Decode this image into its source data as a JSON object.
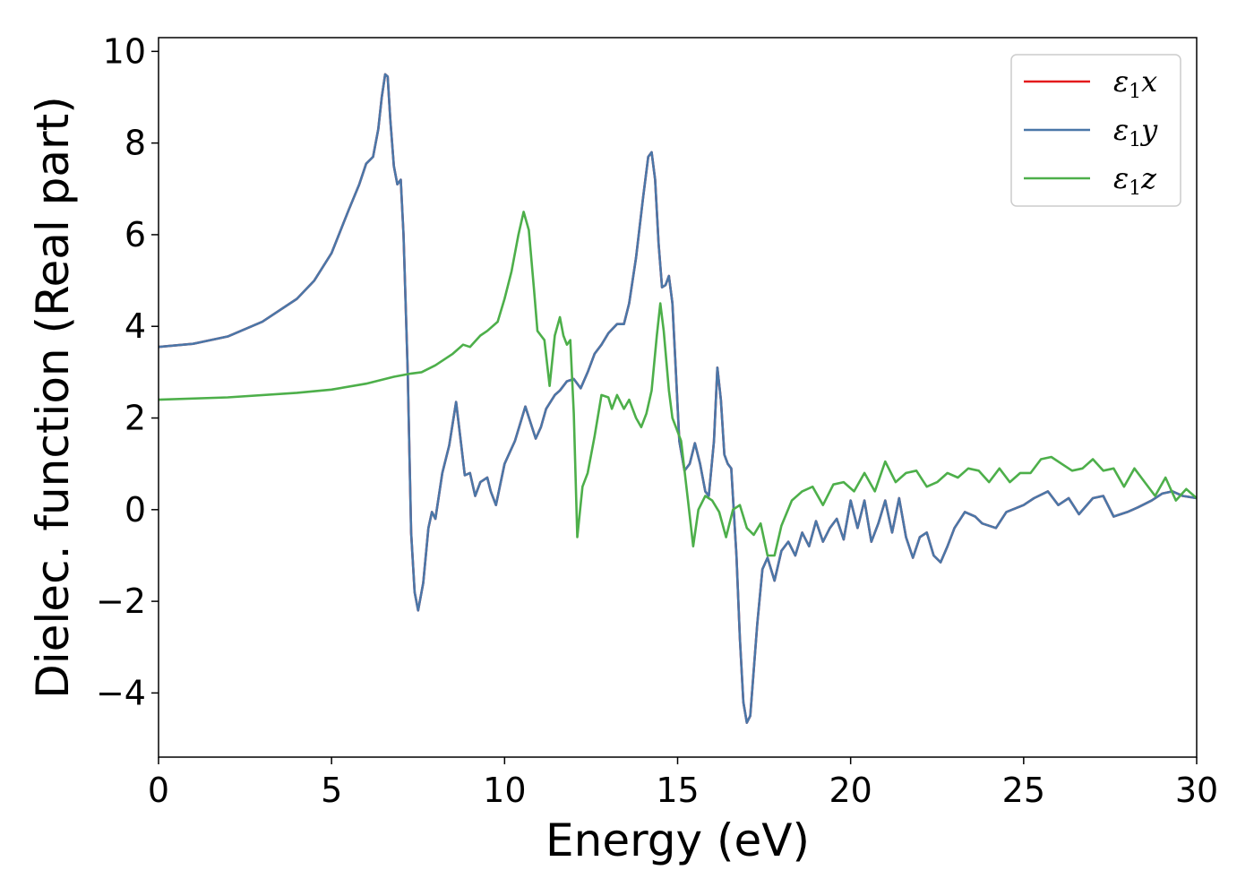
{
  "chart_data": {
    "type": "line",
    "title": "",
    "xlabel": "Energy (eV)",
    "ylabel": "Dielec. function (Real part)",
    "xlim": [
      0,
      30
    ],
    "ylim": [
      -5.4,
      10.3
    ],
    "xticks": [
      0,
      5,
      10,
      15,
      20,
      25,
      30
    ],
    "yticks": [
      -4,
      -2,
      0,
      2,
      4,
      6,
      8,
      10
    ],
    "xtick_labels": [
      "0",
      "5",
      "10",
      "15",
      "20",
      "25",
      "30"
    ],
    "ytick_labels": [
      "−4",
      "−2",
      "0",
      "2",
      "4",
      "6",
      "8",
      "10"
    ],
    "grid": false,
    "legend_position": "top-right",
    "series": [
      {
        "name": "ε₁x",
        "legend_symbol": "ε",
        "legend_sub": "1",
        "legend_axis": "x",
        "color": "#e41a1c",
        "x": [
          0,
          1,
          2,
          3,
          4,
          4.5,
          5,
          5.5,
          5.8,
          6.0,
          6.2,
          6.35,
          6.45,
          6.55,
          6.62,
          6.7,
          6.8,
          6.9,
          7.0,
          7.08,
          7.2,
          7.3,
          7.4,
          7.5,
          7.65,
          7.8,
          7.9,
          8.0,
          8.2,
          8.4,
          8.6,
          8.75,
          8.85,
          9.0,
          9.15,
          9.3,
          9.5,
          9.6,
          9.75,
          10.0,
          10.3,
          10.6,
          10.75,
          10.9,
          11.05,
          11.2,
          11.45,
          11.6,
          11.8,
          12.0,
          12.2,
          12.4,
          12.6,
          12.8,
          13.0,
          13.25,
          13.45,
          13.6,
          13.8,
          14.0,
          14.15,
          14.25,
          14.35,
          14.45,
          14.55,
          14.65,
          14.75,
          14.85,
          14.95,
          15.05,
          15.2,
          15.35,
          15.5,
          15.65,
          15.8,
          15.9,
          16.05,
          16.15,
          16.25,
          16.35,
          16.45,
          16.55,
          16.7,
          16.8,
          16.9,
          17.0,
          17.1,
          17.3,
          17.45,
          17.6,
          17.8,
          18.0,
          18.2,
          18.4,
          18.6,
          18.8,
          19.0,
          19.2,
          19.4,
          19.6,
          19.8,
          20.0,
          20.2,
          20.4,
          20.6,
          20.8,
          21.0,
          21.2,
          21.4,
          21.6,
          21.8,
          22.0,
          22.2,
          22.4,
          22.6,
          22.8,
          23.0,
          23.3,
          23.6,
          23.8,
          24.2,
          24.5,
          25.0,
          25.3,
          25.7,
          26.0,
          26.3,
          26.6,
          27.0,
          27.3,
          27.6,
          28.0,
          28.3,
          28.7,
          29.0,
          29.3,
          29.6,
          30.0
        ],
        "y": [
          3.55,
          3.62,
          3.78,
          4.1,
          4.6,
          5.0,
          5.6,
          6.55,
          7.1,
          7.55,
          7.7,
          8.3,
          9.0,
          9.5,
          9.45,
          8.5,
          7.5,
          7.1,
          7.2,
          6.0,
          3.0,
          -0.5,
          -1.8,
          -2.2,
          -1.6,
          -0.4,
          -0.05,
          -0.2,
          0.8,
          1.4,
          2.35,
          1.4,
          0.75,
          0.8,
          0.3,
          0.6,
          0.7,
          0.4,
          0.1,
          1.0,
          1.5,
          2.25,
          1.9,
          1.55,
          1.8,
          2.2,
          2.5,
          2.6,
          2.8,
          2.85,
          2.65,
          3.0,
          3.4,
          3.6,
          3.85,
          4.05,
          4.05,
          4.5,
          5.5,
          6.8,
          7.7,
          7.8,
          7.2,
          5.8,
          4.85,
          4.9,
          5.1,
          4.5,
          3.0,
          1.5,
          0.85,
          1.0,
          1.45,
          1.0,
          0.4,
          0.3,
          1.5,
          3.1,
          2.4,
          1.2,
          1.0,
          0.9,
          -1.0,
          -2.8,
          -4.2,
          -4.65,
          -4.5,
          -2.5,
          -1.3,
          -1.05,
          -1.55,
          -0.9,
          -0.7,
          -1.0,
          -0.5,
          -0.8,
          -0.25,
          -0.7,
          -0.4,
          -0.2,
          -0.65,
          0.2,
          -0.4,
          0.2,
          -0.7,
          -0.3,
          0.2,
          -0.5,
          0.25,
          -0.6,
          -1.05,
          -0.6,
          -0.5,
          -1.0,
          -1.15,
          -0.8,
          -0.4,
          -0.05,
          -0.15,
          -0.3,
          -0.4,
          -0.05,
          0.1,
          0.25,
          0.4,
          0.1,
          0.25,
          -0.1,
          0.25,
          0.3,
          -0.15,
          -0.05,
          0.05,
          0.2,
          0.35,
          0.4,
          0.3,
          0.25
        ]
      },
      {
        "name": "ε₁y",
        "legend_symbol": "ε",
        "legend_sub": "1",
        "legend_axis": "y",
        "color": "#4a77a8",
        "x": [
          0,
          1,
          2,
          3,
          4,
          4.5,
          5,
          5.5,
          5.8,
          6.0,
          6.2,
          6.35,
          6.45,
          6.55,
          6.62,
          6.7,
          6.8,
          6.9,
          7.0,
          7.08,
          7.2,
          7.3,
          7.4,
          7.5,
          7.65,
          7.8,
          7.9,
          8.0,
          8.2,
          8.4,
          8.6,
          8.75,
          8.85,
          9.0,
          9.15,
          9.3,
          9.5,
          9.6,
          9.75,
          10.0,
          10.3,
          10.6,
          10.75,
          10.9,
          11.05,
          11.2,
          11.45,
          11.6,
          11.8,
          12.0,
          12.2,
          12.4,
          12.6,
          12.8,
          13.0,
          13.25,
          13.45,
          13.6,
          13.8,
          14.0,
          14.15,
          14.25,
          14.35,
          14.45,
          14.55,
          14.65,
          14.75,
          14.85,
          14.95,
          15.05,
          15.2,
          15.35,
          15.5,
          15.65,
          15.8,
          15.9,
          16.05,
          16.15,
          16.25,
          16.35,
          16.45,
          16.55,
          16.7,
          16.8,
          16.9,
          17.0,
          17.1,
          17.3,
          17.45,
          17.6,
          17.8,
          18.0,
          18.2,
          18.4,
          18.6,
          18.8,
          19.0,
          19.2,
          19.4,
          19.6,
          19.8,
          20.0,
          20.2,
          20.4,
          20.6,
          20.8,
          21.0,
          21.2,
          21.4,
          21.6,
          21.8,
          22.0,
          22.2,
          22.4,
          22.6,
          22.8,
          23.0,
          23.3,
          23.6,
          23.8,
          24.2,
          24.5,
          25.0,
          25.3,
          25.7,
          26.0,
          26.3,
          26.6,
          27.0,
          27.3,
          27.6,
          28.0,
          28.3,
          28.7,
          29.0,
          29.3,
          29.6,
          30.0
        ],
        "y": [
          3.55,
          3.62,
          3.78,
          4.1,
          4.6,
          5.0,
          5.6,
          6.55,
          7.1,
          7.55,
          7.7,
          8.3,
          9.0,
          9.5,
          9.45,
          8.5,
          7.5,
          7.1,
          7.2,
          6.0,
          3.0,
          -0.5,
          -1.8,
          -2.2,
          -1.6,
          -0.4,
          -0.05,
          -0.2,
          0.8,
          1.4,
          2.35,
          1.4,
          0.75,
          0.8,
          0.3,
          0.6,
          0.7,
          0.4,
          0.1,
          1.0,
          1.5,
          2.25,
          1.9,
          1.55,
          1.8,
          2.2,
          2.5,
          2.6,
          2.8,
          2.85,
          2.65,
          3.0,
          3.4,
          3.6,
          3.85,
          4.05,
          4.05,
          4.5,
          5.5,
          6.8,
          7.7,
          7.8,
          7.2,
          5.8,
          4.85,
          4.9,
          5.1,
          4.5,
          3.0,
          1.5,
          0.85,
          1.0,
          1.45,
          1.0,
          0.4,
          0.3,
          1.5,
          3.1,
          2.4,
          1.2,
          1.0,
          0.9,
          -1.0,
          -2.8,
          -4.2,
          -4.65,
          -4.5,
          -2.5,
          -1.3,
          -1.05,
          -1.55,
          -0.9,
          -0.7,
          -1.0,
          -0.5,
          -0.8,
          -0.25,
          -0.7,
          -0.4,
          -0.2,
          -0.65,
          0.2,
          -0.4,
          0.2,
          -0.7,
          -0.3,
          0.2,
          -0.5,
          0.25,
          -0.6,
          -1.05,
          -0.6,
          -0.5,
          -1.0,
          -1.15,
          -0.8,
          -0.4,
          -0.05,
          -0.15,
          -0.3,
          -0.4,
          -0.05,
          0.1,
          0.25,
          0.4,
          0.1,
          0.25,
          -0.1,
          0.25,
          0.3,
          -0.15,
          -0.05,
          0.05,
          0.2,
          0.35,
          0.4,
          0.3,
          0.25
        ]
      },
      {
        "name": "ε₁z",
        "legend_symbol": "ε",
        "legend_sub": "1",
        "legend_axis": "z",
        "color": "#4daf4a",
        "x": [
          0,
          2,
          4,
          5,
          6,
          6.8,
          7.3,
          7.6,
          8.0,
          8.5,
          8.8,
          9.0,
          9.3,
          9.5,
          9.8,
          10.0,
          10.2,
          10.4,
          10.55,
          10.7,
          10.85,
          10.95,
          11.05,
          11.15,
          11.3,
          11.45,
          11.6,
          11.7,
          11.8,
          11.9,
          12.0,
          12.1,
          12.25,
          12.4,
          12.6,
          12.8,
          13.0,
          13.1,
          13.25,
          13.45,
          13.6,
          13.8,
          13.95,
          14.1,
          14.25,
          14.4,
          14.5,
          14.6,
          14.75,
          14.85,
          14.95,
          15.1,
          15.3,
          15.45,
          15.6,
          15.8,
          16.0,
          16.2,
          16.4,
          16.6,
          16.8,
          17.0,
          17.2,
          17.4,
          17.6,
          17.8,
          18.0,
          18.3,
          18.6,
          18.9,
          19.2,
          19.5,
          19.8,
          20.1,
          20.4,
          20.7,
          21.0,
          21.3,
          21.6,
          21.9,
          22.2,
          22.5,
          22.8,
          23.1,
          23.4,
          23.7,
          24.0,
          24.3,
          24.6,
          24.9,
          25.2,
          25.5,
          25.8,
          26.1,
          26.4,
          26.7,
          27.0,
          27.3,
          27.6,
          27.9,
          28.2,
          28.5,
          28.8,
          29.1,
          29.4,
          29.7,
          30.0
        ],
        "y": [
          2.4,
          2.45,
          2.55,
          2.62,
          2.75,
          2.9,
          2.97,
          3.0,
          3.15,
          3.4,
          3.6,
          3.55,
          3.8,
          3.9,
          4.1,
          4.6,
          5.2,
          6.0,
          6.5,
          6.1,
          4.8,
          3.9,
          3.8,
          3.7,
          2.7,
          3.8,
          4.2,
          3.8,
          3.6,
          3.7,
          2.1,
          -0.6,
          0.5,
          0.8,
          1.6,
          2.5,
          2.45,
          2.2,
          2.5,
          2.2,
          2.4,
          2.0,
          1.8,
          2.1,
          2.6,
          3.8,
          4.5,
          3.9,
          2.6,
          2.0,
          1.8,
          1.5,
          0.2,
          -0.8,
          0.0,
          0.3,
          0.2,
          -0.05,
          -0.6,
          0.0,
          0.1,
          -0.4,
          -0.55,
          -0.3,
          -1.0,
          -1.0,
          -0.35,
          0.2,
          0.4,
          0.5,
          0.1,
          0.55,
          0.6,
          0.4,
          0.8,
          0.4,
          1.05,
          0.6,
          0.8,
          0.85,
          0.5,
          0.6,
          0.8,
          0.7,
          0.9,
          0.85,
          0.6,
          0.9,
          0.6,
          0.8,
          0.8,
          1.1,
          1.15,
          1.0,
          0.85,
          0.9,
          1.1,
          0.85,
          0.9,
          0.5,
          0.9,
          0.6,
          0.3,
          0.7,
          0.2,
          0.45,
          0.25
        ]
      }
    ]
  }
}
